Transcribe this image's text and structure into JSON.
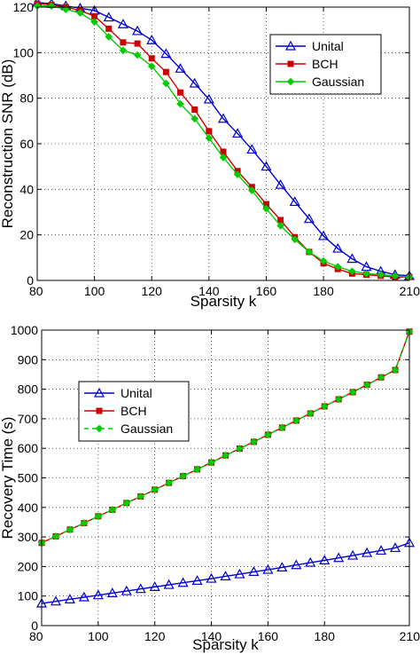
{
  "chart_data": [
    {
      "type": "line",
      "xlabel": "Sparsity  k",
      "ylabel": "Reconstruction SNR (dB)",
      "xlim": [
        80,
        210
      ],
      "ylim": [
        0,
        120
      ],
      "xticks": [
        80,
        100,
        120,
        140,
        160,
        180,
        210
      ],
      "yticks": [
        0,
        20,
        40,
        60,
        80,
        100,
        120
      ],
      "grid": true,
      "legend_position": "top-right",
      "x": [
        80,
        85,
        90,
        95,
        100,
        105,
        110,
        115,
        120,
        125,
        130,
        135,
        140,
        145,
        150,
        155,
        160,
        165,
        170,
        175,
        180,
        185,
        190,
        195,
        200,
        205,
        210
      ],
      "series": [
        {
          "name": "Unital",
          "color": "#0000cc",
          "marker": "triangle",
          "values": [
            122,
            121.5,
            120.5,
            119.5,
            118.5,
            115.5,
            112.5,
            109.5,
            105.5,
            99.5,
            93,
            86.5,
            79.5,
            71,
            64.5,
            57.5,
            50,
            42,
            34.5,
            27,
            19.5,
            14,
            9.5,
            6,
            4,
            2.5,
            2
          ]
        },
        {
          "name": "BCH",
          "color": "#cc0000",
          "marker": "square",
          "values": [
            121.5,
            121,
            120,
            118.5,
            116,
            110.5,
            104.5,
            104,
            97.5,
            91.5,
            82.5,
            75,
            65.5,
            56.5,
            48,
            41,
            33.5,
            26.5,
            19,
            12.5,
            7.5,
            5,
            3,
            2.5,
            2,
            1.5,
            1.5
          ]
        },
        {
          "name": "Gaussian",
          "color": "#00cc00",
          "marker": "diamond",
          "values": [
            120.5,
            120.5,
            119,
            117.5,
            113.5,
            107,
            101,
            99,
            94,
            86.5,
            77.5,
            71,
            62.5,
            54,
            46.5,
            39.5,
            31.5,
            24,
            18,
            12.5,
            8.5,
            6,
            4,
            3,
            2.5,
            2,
            1.5
          ]
        }
      ]
    },
    {
      "type": "line",
      "xlabel": "Sparsity  k",
      "ylabel": "Recovery Time (s)",
      "xlim": [
        80,
        210
      ],
      "ylim": [
        0,
        1000
      ],
      "xticks": [
        80,
        100,
        120,
        140,
        160,
        180,
        210
      ],
      "yticks": [
        0,
        100,
        200,
        300,
        400,
        500,
        600,
        700,
        800,
        900,
        1000
      ],
      "grid": true,
      "legend_position": "top-left",
      "x": [
        80,
        85,
        90,
        95,
        100,
        105,
        110,
        115,
        120,
        125,
        130,
        135,
        140,
        145,
        150,
        155,
        160,
        165,
        170,
        175,
        180,
        185,
        190,
        195,
        200,
        205,
        210
      ],
      "series": [
        {
          "name": "Unital",
          "color": "#0000cc",
          "marker": "triangle",
          "values": [
            75,
            82,
            89,
            96,
            103,
            110,
            117,
            124,
            131,
            138,
            145,
            152,
            159,
            167,
            174,
            182,
            189,
            197,
            205,
            213,
            221,
            229,
            237,
            246,
            254,
            263,
            280
          ]
        },
        {
          "name": "BCH",
          "color": "#cc0000",
          "marker": "square",
          "values": [
            280,
            302,
            325,
            347,
            370,
            392,
            415,
            437,
            460,
            483,
            506,
            529,
            552,
            576,
            599,
            622,
            646,
            670,
            694,
            718,
            742,
            766,
            790,
            815,
            840,
            865,
            995
          ]
        },
        {
          "name": "Gaussian",
          "color": "#00cc00",
          "marker": "diamond",
          "dashed": true,
          "values": [
            280,
            302,
            325,
            347,
            370,
            392,
            415,
            437,
            460,
            483,
            506,
            529,
            552,
            576,
            599,
            622,
            646,
            670,
            694,
            718,
            742,
            766,
            790,
            815,
            840,
            865,
            995
          ]
        }
      ]
    }
  ]
}
